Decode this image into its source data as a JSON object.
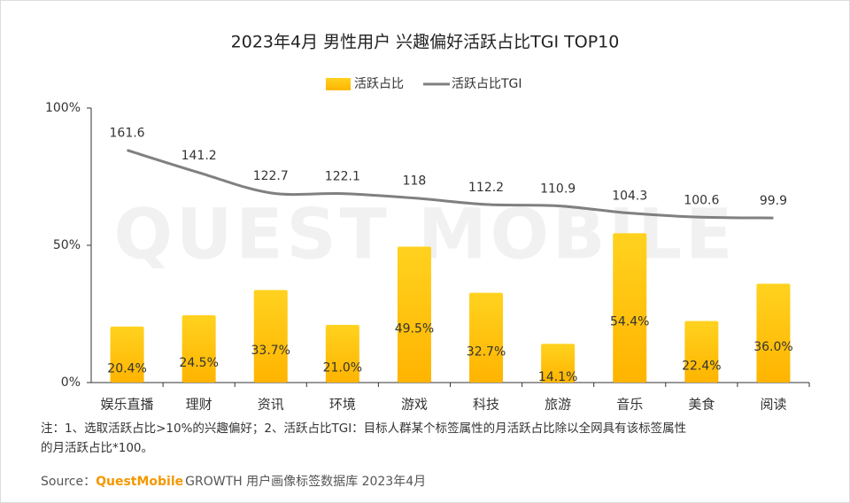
{
  "chart_data": {
    "type": "bar",
    "title": "2023年4月 男性用户 兴趣偏好活跃占比TGI TOP10",
    "watermark": "QUEST MOBILE",
    "categories": [
      "娱乐直播",
      "理财",
      "资讯",
      "环境",
      "游戏",
      "科技",
      "旅游",
      "音乐",
      "美食",
      "阅读"
    ],
    "series": [
      {
        "name": "活跃占比",
        "type": "bar",
        "color": "#FFC20E",
        "values": [
          20.4,
          24.5,
          33.7,
          21.0,
          49.5,
          32.7,
          14.1,
          54.4,
          22.4,
          36.0
        ],
        "value_labels": [
          "20.4%",
          "24.5%",
          "33.7%",
          "21.0%",
          "49.5%",
          "32.7%",
          "14.1%",
          "54.4%",
          "22.4%",
          "36.0%"
        ]
      },
      {
        "name": "活跃占比TGI",
        "type": "line",
        "color": "#808080",
        "axis": "y2",
        "values": [
          161.6,
          141.2,
          122.7,
          122.1,
          118.0,
          112.2,
          110.9,
          104.3,
          100.6,
          99.9
        ]
      }
    ],
    "ylim": [
      0,
      100
    ],
    "yticks": [
      {
        "value": 0,
        "label": "0%"
      },
      {
        "value": 50,
        "label": "50%"
      },
      {
        "value": 100,
        "label": "100%"
      }
    ],
    "y2lim": [
      -50,
      200
    ],
    "note": [
      "注：1、选取活跃占比>10%的兴趣偏好；2、活跃占比TGI：目标人群某个标签属性的月活跃占比除以全网具有该标签属性",
      "的月活跃占比*100。"
    ],
    "source": {
      "prefix": "Source：",
      "brand": "QuestMobile",
      "text": "GROWTH 用户画像标签数据库 2023年4月"
    }
  }
}
